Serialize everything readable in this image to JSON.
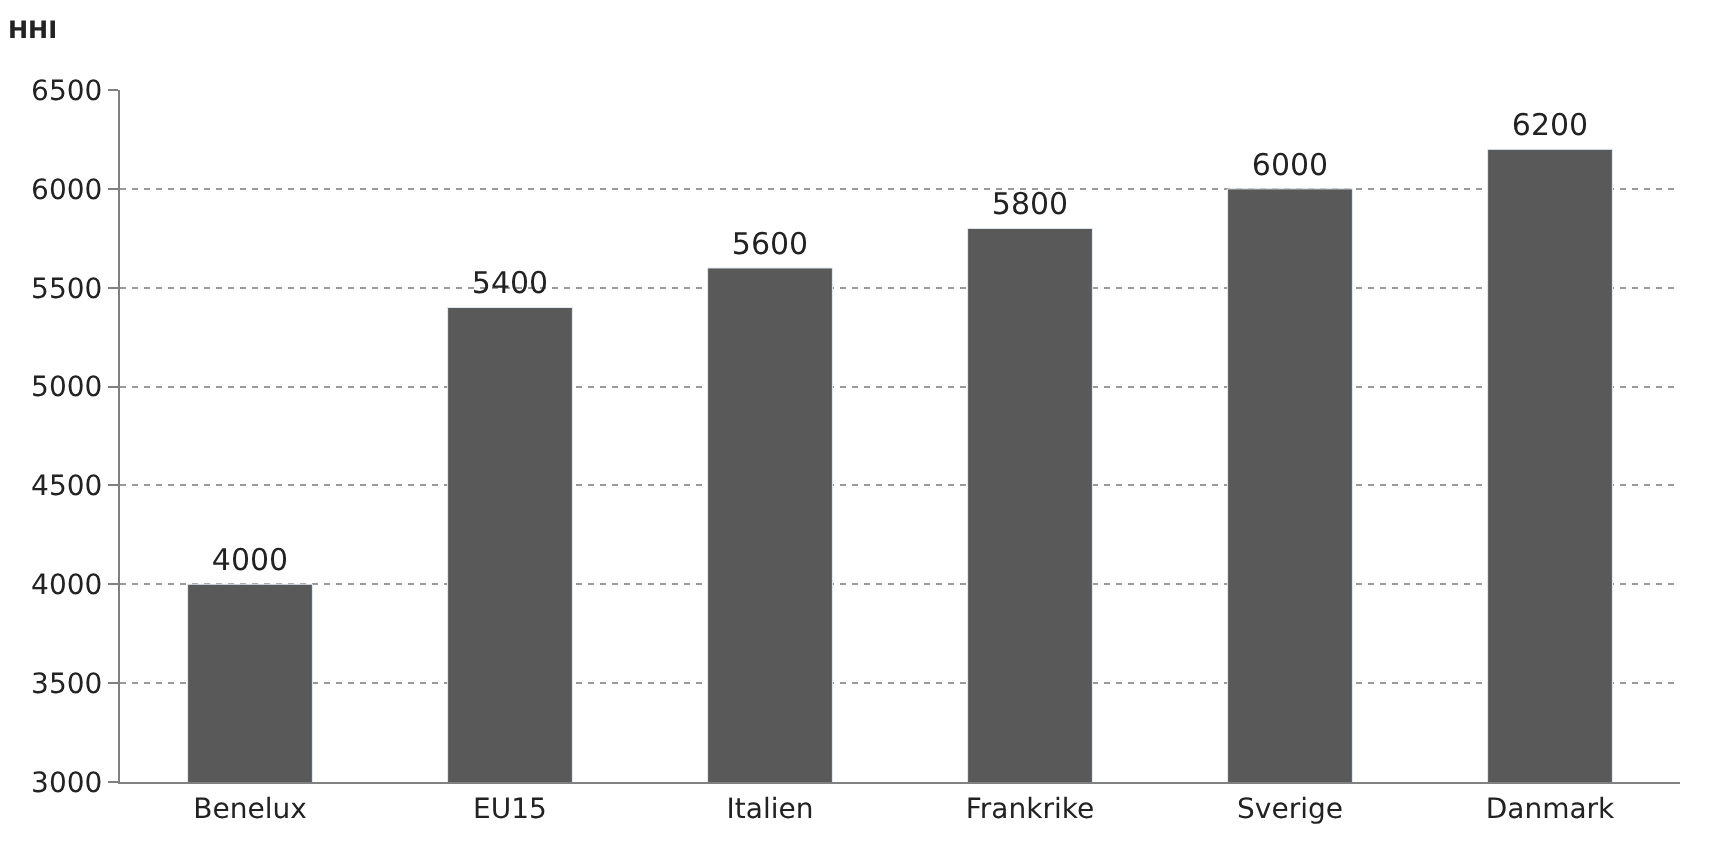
{
  "chart_data": {
    "type": "bar",
    "ylabel": "HHI",
    "categories": [
      "Benelux",
      "EU15",
      "Italien",
      "Frankrike",
      "Sverige",
      "Danmark"
    ],
    "values": [
      4000,
      5400,
      5600,
      5800,
      6000,
      6200
    ],
    "color": "#595959",
    "ylim": [
      3000,
      6500
    ],
    "yticks": [
      3000,
      3500,
      4000,
      4500,
      5000,
      5500,
      6000,
      6500
    ],
    "grid": "y",
    "data_labels": true
  }
}
